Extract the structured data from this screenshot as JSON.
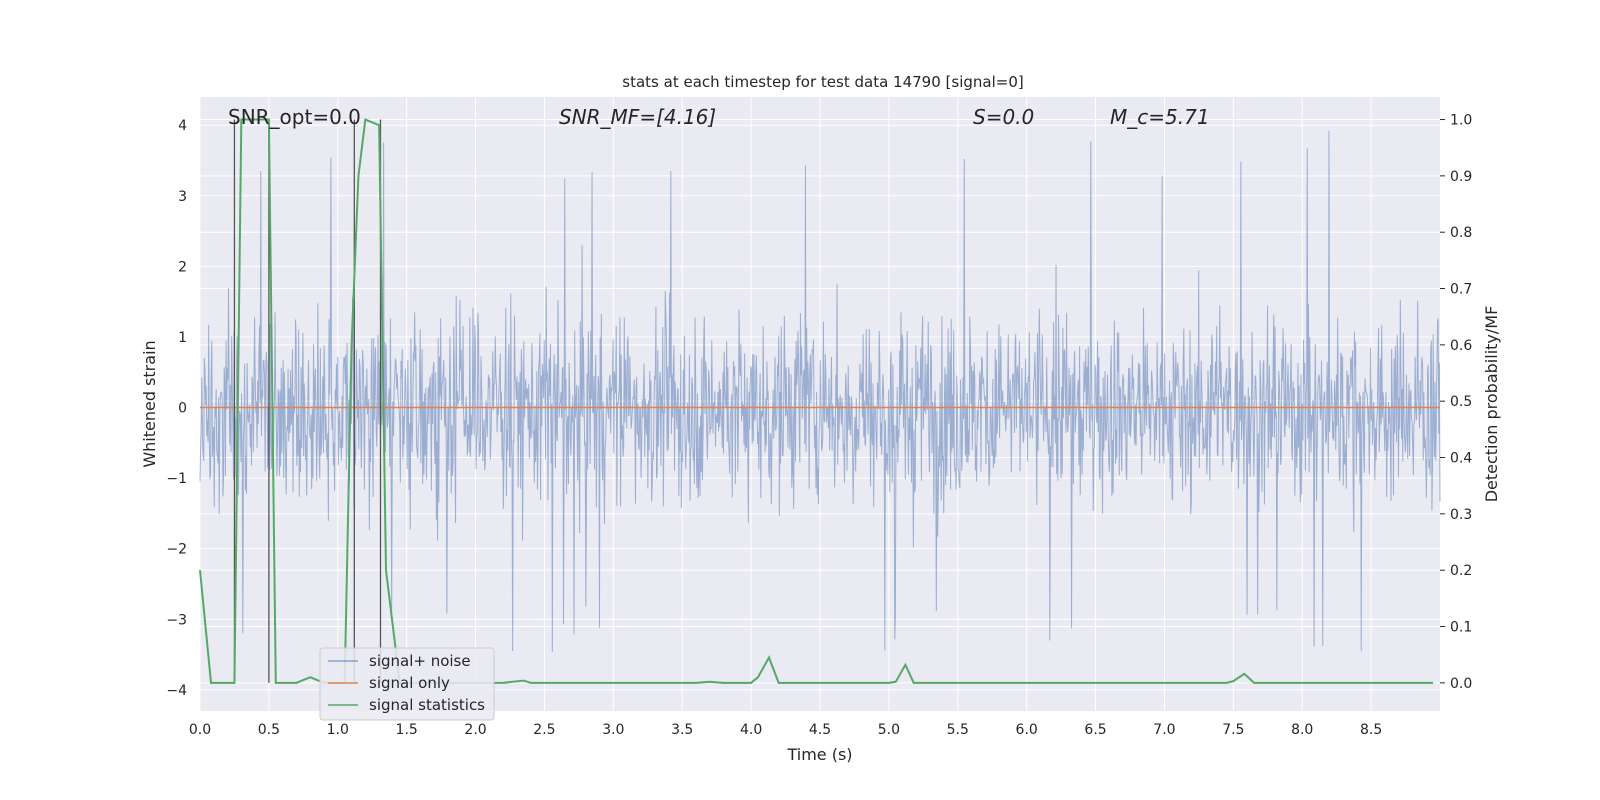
{
  "chart_data": {
    "type": "line",
    "title": "stats at each timestep for test data 14790 [signal=0]",
    "xlabel": "Time (s)",
    "ylabel": "Whitened strain",
    "y2label": "Detection probability/MF",
    "xlim": [
      0.0,
      9.0
    ],
    "ylim": [
      -4.3,
      4.4
    ],
    "y2lim": [
      -0.05,
      1.04
    ],
    "xticks": [
      "0.0",
      "0.5",
      "1.0",
      "1.5",
      "2.0",
      "2.5",
      "3.0",
      "3.5",
      "4.0",
      "4.5",
      "5.0",
      "5.5",
      "6.0",
      "6.5",
      "7.0",
      "7.5",
      "8.0",
      "8.5"
    ],
    "yticks": [
      "4",
      "3",
      "2",
      "1",
      "0",
      "−1",
      "−2",
      "−3",
      "−4"
    ],
    "y2ticks": [
      "1.0",
      "0.9",
      "0.8",
      "0.7",
      "0.6",
      "0.5",
      "0.4",
      "0.3",
      "0.2",
      "0.1",
      "0.0"
    ],
    "grid": true,
    "legend_position": "lower-left",
    "annotations": {
      "snr_opt": "SNR_opt=0.0",
      "snr_mf": "SNR_MF=[4.16]",
      "s": "S=0.0",
      "mc": "M_c=5.71"
    },
    "colors": {
      "noise": "#4c72b0",
      "signal": "#dd8452",
      "stats": "#55a868",
      "axes_bg": "#eaeaf2",
      "grid": "#ffffff"
    },
    "series": [
      {
        "name": "signal+ noise",
        "description_of_shape": "dense noise strain, roughly |y|<2 with spikes to about ±3.5",
        "envelope": {
          "typical_max": 2.2,
          "typical_min": -2.3,
          "peak_max": 4.0,
          "peak_min": -3.5
        }
      },
      {
        "name": "signal only",
        "x": [
          0.0,
          9.0
        ],
        "y": [
          0.0,
          0.0
        ]
      },
      {
        "name": "signal statistics",
        "axis": "right",
        "x": [
          0.0,
          0.08,
          0.15,
          0.25,
          0.3,
          0.5,
          0.55,
          0.7,
          0.8,
          0.85,
          0.9,
          1.05,
          1.1,
          1.15,
          1.2,
          1.3,
          1.35,
          1.45,
          1.8,
          2.2,
          2.35,
          2.4,
          2.5,
          3.6,
          3.7,
          3.8,
          4.0,
          4.05,
          4.13,
          4.2,
          5.0,
          5.05,
          5.12,
          5.18,
          7.45,
          7.5,
          7.58,
          7.65,
          8.95
        ],
        "y": [
          0.2,
          0.0,
          0.0,
          0.0,
          1.0,
          1.0,
          0.0,
          0.0,
          0.01,
          0.005,
          0.0,
          0.0,
          0.6,
          0.9,
          1.0,
          0.99,
          0.2,
          0.0,
          0.0,
          0.0,
          0.004,
          0.0,
          0.0,
          0.0,
          0.002,
          0.0,
          0.0,
          0.01,
          0.045,
          0.0,
          0.0,
          0.002,
          0.032,
          0.0,
          0.0,
          0.003,
          0.016,
          0.0,
          0.0
        ]
      }
    ],
    "vertical_markers_x": [
      0.25,
      0.5,
      1.12,
      1.31
    ]
  }
}
